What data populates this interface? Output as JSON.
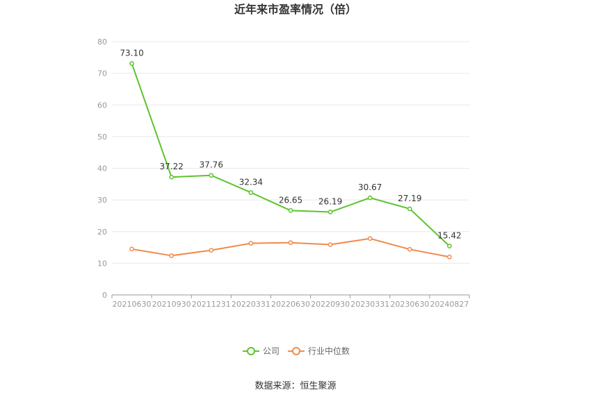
{
  "chart_data": {
    "type": "line",
    "title": "近年来市盈率情况（倍）",
    "categories": [
      "20210630",
      "20210930",
      "20211231",
      "20220331",
      "20220630",
      "20220930",
      "20230331",
      "20230630",
      "20240827"
    ],
    "series": [
      {
        "name": "公司",
        "color": "#5cc42a",
        "values": [
          73.1,
          37.22,
          37.76,
          32.34,
          26.65,
          26.19,
          30.67,
          27.19,
          15.42
        ],
        "labels": [
          "73.10",
          "37.22",
          "37.76",
          "32.34",
          "26.65",
          "26.19",
          "30.67",
          "27.19",
          "15.42"
        ]
      },
      {
        "name": "行业中位数",
        "color": "#f08a4b",
        "values": [
          14.5,
          12.4,
          14.1,
          16.3,
          16.5,
          15.9,
          17.8,
          14.4,
          12.0
        ]
      }
    ],
    "ylim": [
      0,
      80
    ],
    "yticks": [
      "0",
      "10",
      "20",
      "30",
      "40",
      "50",
      "60",
      "70",
      "80"
    ],
    "grid": true,
    "legend": "bottom"
  },
  "source": "数据来源：恒生聚源"
}
